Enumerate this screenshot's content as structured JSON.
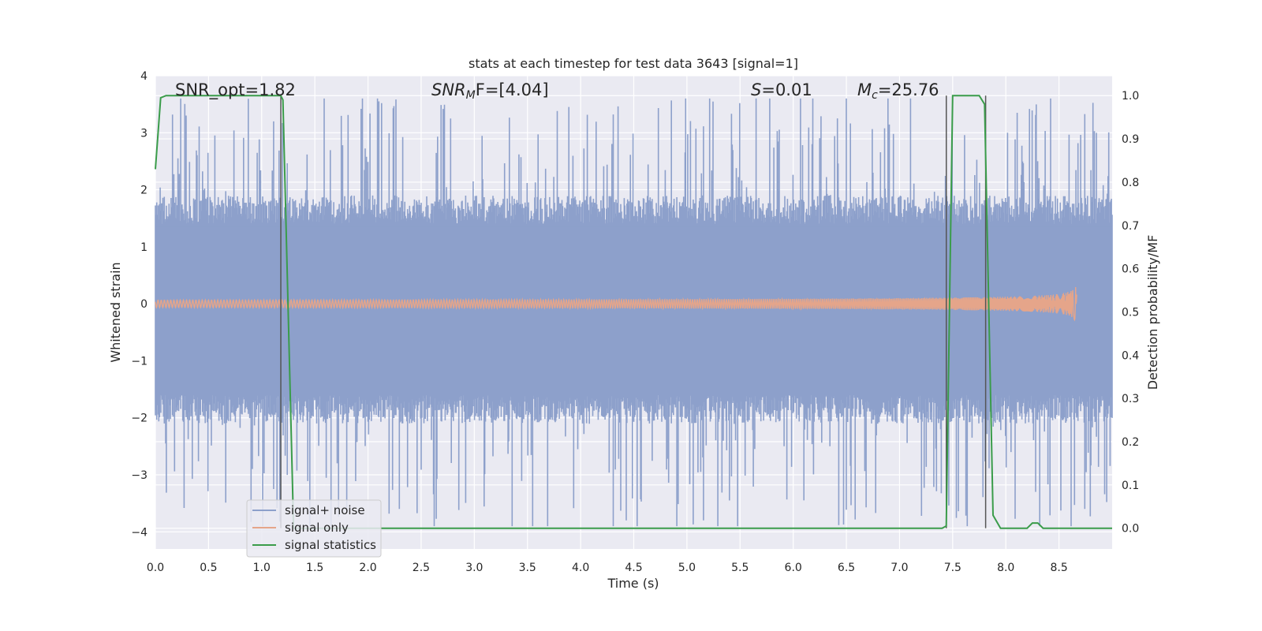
{
  "chart_data": {
    "type": "line",
    "title": "stats at each timestep for test data 3643 [signal=1]",
    "xlabel": "Time (s)",
    "ylabel_left": "Whitened strain",
    "ylabel_right": "Detection probability/MF",
    "xlim": [
      0.0,
      9.0
    ],
    "ylim_left": [
      -4.3,
      4.0
    ],
    "ylim_right": [
      -0.048,
      1.046
    ],
    "x_ticks": [
      "0.0",
      "0.5",
      "1.0",
      "1.5",
      "2.0",
      "2.5",
      "3.0",
      "3.5",
      "4.0",
      "4.5",
      "5.0",
      "5.5",
      "6.0",
      "6.5",
      "7.0",
      "7.5",
      "8.0",
      "8.5"
    ],
    "x_tick_values": [
      0.0,
      0.5,
      1.0,
      1.5,
      2.0,
      2.5,
      3.0,
      3.5,
      4.0,
      4.5,
      5.0,
      5.5,
      6.0,
      6.5,
      7.0,
      7.5,
      8.0,
      8.5
    ],
    "y_left_ticks": [
      "4",
      "3",
      "2",
      "1",
      "0",
      "−1",
      "−2",
      "−3",
      "−4"
    ],
    "y_left_tick_values": [
      4,
      3,
      2,
      1,
      0,
      -1,
      -2,
      -3,
      -4
    ],
    "y_right_ticks": [
      "1.0",
      "0.9",
      "0.8",
      "0.7",
      "0.6",
      "0.5",
      "0.4",
      "0.3",
      "0.2",
      "0.1",
      "0.0"
    ],
    "y_right_tick_values": [
      1.0,
      0.9,
      0.8,
      0.7,
      0.6,
      0.5,
      0.4,
      0.3,
      0.2,
      0.1,
      0.0
    ],
    "grid": true,
    "legend_position": "lower-left",
    "annotations": {
      "snr_opt": "SNR_opt=1.82",
      "snr_mf_label": "SNR",
      "snr_mf_sub": "M",
      "snr_mf_rest": "F=[4.04]",
      "s_label": "S",
      "s_rest": "=0.01",
      "mc_label": "M",
      "mc_sub": "c",
      "mc_rest": "=25.76"
    },
    "series": [
      {
        "name": "signal+ noise",
        "color": "#8da0cb",
        "style": "noise band",
        "x_range": [
          0.0,
          9.0
        ],
        "typical_envelope": [
          -1.8,
          1.6
        ],
        "peak_envelope": [
          -3.9,
          3.6
        ]
      },
      {
        "name": "signal only",
        "color": "#e5a58a",
        "style": "chirp",
        "x_range": [
          0.0,
          8.67
        ],
        "merger_time": 8.67,
        "peak_amplitude": 0.45
      },
      {
        "name": "signal statistics",
        "color": "#3a9c4a",
        "axis": "right",
        "x": [
          0.0,
          0.05,
          0.1,
          1.18,
          1.2,
          1.3,
          1.32,
          7.4,
          7.44,
          7.5,
          7.75,
          7.8,
          7.88,
          7.95,
          8.2,
          8.25,
          8.3,
          8.35,
          9.0
        ],
        "y": [
          0.83,
          0.995,
          1.0,
          1.0,
          0.99,
          0.0,
          0.0,
          0.0,
          0.005,
          1.0,
          1.0,
          0.98,
          0.03,
          0.0,
          0.0,
          0.012,
          0.012,
          0.0,
          0.0
        ]
      }
    ],
    "vertical_markers": [
      1.18,
      7.44,
      7.81
    ]
  }
}
